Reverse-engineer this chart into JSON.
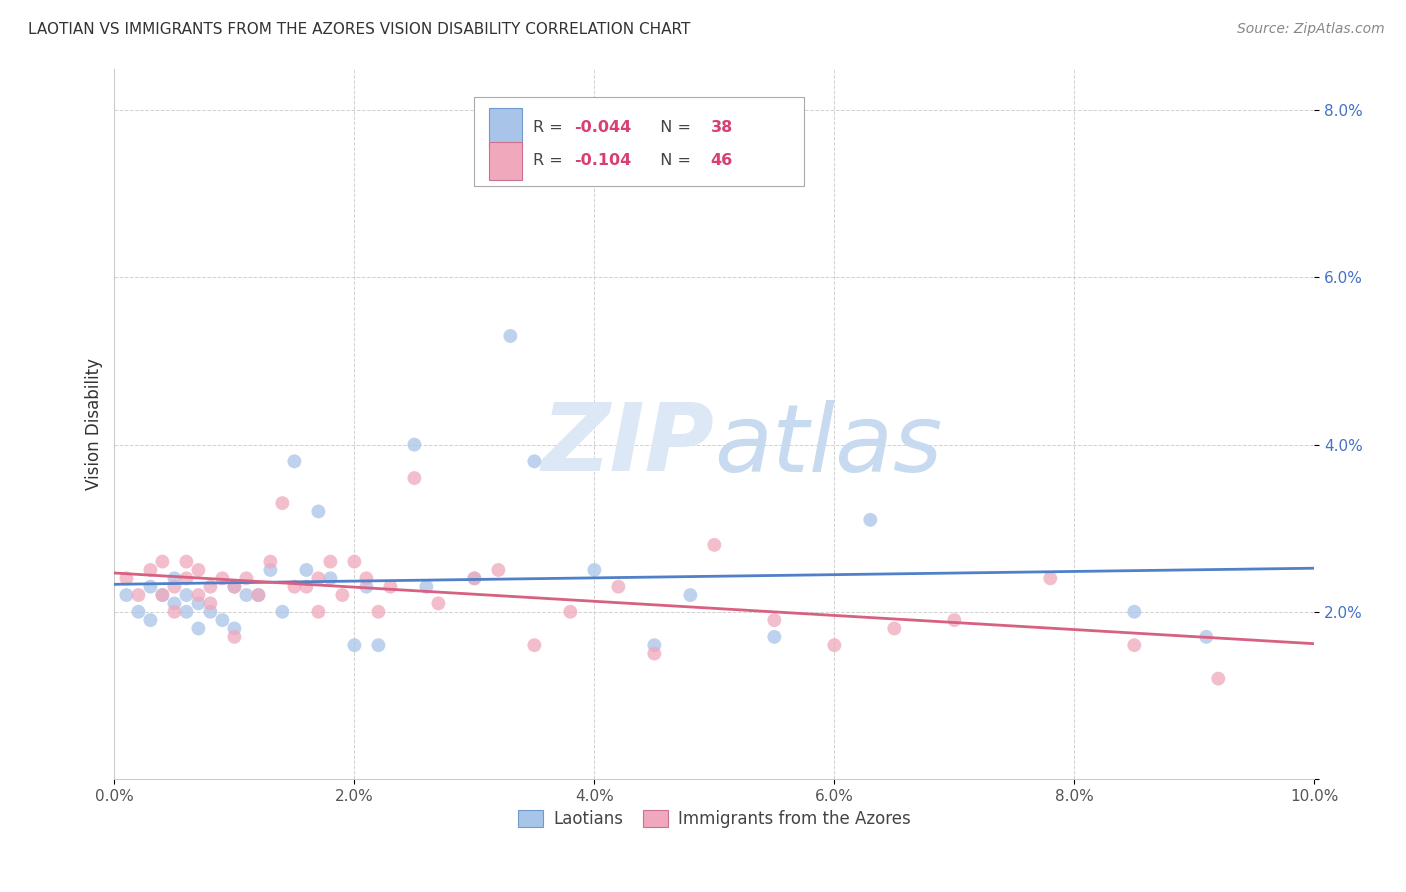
{
  "title": "LAOTIAN VS IMMIGRANTS FROM THE AZORES VISION DISABILITY CORRELATION CHART",
  "source": "Source: ZipAtlas.com",
  "ylabel": "Vision Disability",
  "xlim": [
    0,
    0.1
  ],
  "ylim": [
    0,
    0.085
  ],
  "xticks": [
    0.0,
    0.02,
    0.04,
    0.06,
    0.08,
    0.1
  ],
  "yticks": [
    0.0,
    0.02,
    0.04,
    0.06,
    0.08
  ],
  "ytick_labels": [
    "",
    "2.0%",
    "4.0%",
    "6.0%",
    "8.0%"
  ],
  "xtick_labels": [
    "0.0%",
    "2.0%",
    "4.0%",
    "6.0%",
    "8.0%",
    "10.0%"
  ],
  "legend_label1": "Laotians",
  "legend_label2": "Immigrants from the Azores",
  "R1": "-0.044",
  "N1": "38",
  "R2": "-0.104",
  "N2": "46",
  "color_blue": "#a8c4e8",
  "color_pink": "#f0a8bc",
  "color_blue_line": "#5080c8",
  "color_pink_line": "#d86080",
  "watermark_color": "#dce8f5",
  "background_color": "#ffffff",
  "grid_color": "#cccccc",
  "marker_size": 100,
  "blue_x": [
    0.001,
    0.002,
    0.003,
    0.003,
    0.004,
    0.005,
    0.005,
    0.006,
    0.006,
    0.007,
    0.007,
    0.008,
    0.009,
    0.01,
    0.01,
    0.011,
    0.012,
    0.013,
    0.014,
    0.015,
    0.016,
    0.017,
    0.018,
    0.02,
    0.021,
    0.022,
    0.025,
    0.026,
    0.03,
    0.033,
    0.035,
    0.04,
    0.045,
    0.048,
    0.055,
    0.063,
    0.085,
    0.091
  ],
  "blue_y": [
    0.022,
    0.02,
    0.023,
    0.019,
    0.022,
    0.021,
    0.024,
    0.02,
    0.022,
    0.021,
    0.018,
    0.02,
    0.019,
    0.023,
    0.018,
    0.022,
    0.022,
    0.025,
    0.02,
    0.038,
    0.025,
    0.032,
    0.024,
    0.016,
    0.023,
    0.016,
    0.04,
    0.023,
    0.024,
    0.053,
    0.038,
    0.025,
    0.016,
    0.022,
    0.017,
    0.031,
    0.02,
    0.017
  ],
  "pink_x": [
    0.001,
    0.002,
    0.003,
    0.004,
    0.004,
    0.005,
    0.005,
    0.006,
    0.006,
    0.007,
    0.007,
    0.008,
    0.008,
    0.009,
    0.01,
    0.01,
    0.011,
    0.012,
    0.013,
    0.014,
    0.015,
    0.016,
    0.017,
    0.017,
    0.018,
    0.019,
    0.02,
    0.021,
    0.022,
    0.023,
    0.025,
    0.027,
    0.03,
    0.032,
    0.035,
    0.038,
    0.042,
    0.045,
    0.05,
    0.055,
    0.06,
    0.065,
    0.07,
    0.078,
    0.085,
    0.092
  ],
  "pink_y": [
    0.024,
    0.022,
    0.025,
    0.026,
    0.022,
    0.023,
    0.02,
    0.024,
    0.026,
    0.022,
    0.025,
    0.023,
    0.021,
    0.024,
    0.023,
    0.017,
    0.024,
    0.022,
    0.026,
    0.033,
    0.023,
    0.023,
    0.024,
    0.02,
    0.026,
    0.022,
    0.026,
    0.024,
    0.02,
    0.023,
    0.036,
    0.021,
    0.024,
    0.025,
    0.016,
    0.02,
    0.023,
    0.015,
    0.028,
    0.019,
    0.016,
    0.018,
    0.019,
    0.024,
    0.016,
    0.012
  ]
}
